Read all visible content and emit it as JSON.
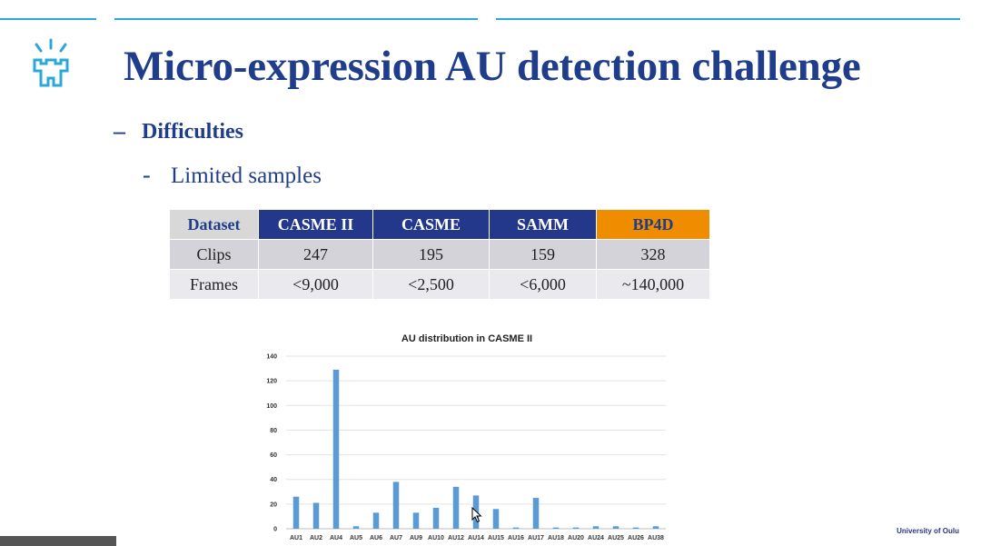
{
  "slide": {
    "title": "Micro-expression AU detection challenge",
    "bullet1": "Difficulties",
    "bullet2": "Limited samples",
    "footer": "University of Oulu",
    "logo": "university-tower-logo-icon",
    "accent_color": "#2aa9d8",
    "title_color": "#1f3d8a"
  },
  "table": {
    "headers": [
      "Dataset",
      "CASME II",
      "CASME",
      "SAMM",
      "BP4D"
    ],
    "rows": [
      [
        "Clips",
        "247",
        "195",
        "159",
        "328"
      ],
      [
        "Frames",
        "<9,000",
        "<2,500",
        "<6,000",
        "~140,000"
      ]
    ],
    "header_color": "#23388a",
    "highlight_color": "#f08c00"
  },
  "chart_data": {
    "type": "bar",
    "title": "AU distribution in CASME II",
    "xlabel": "",
    "ylabel": "",
    "categories": [
      "AU1",
      "AU2",
      "AU4",
      "AU5",
      "AU6",
      "AU7",
      "AU9",
      "AU10",
      "AU12",
      "AU14",
      "AU15",
      "AU16",
      "AU17",
      "AU18",
      "AU20",
      "AU24",
      "AU25",
      "AU26",
      "AU38"
    ],
    "values": [
      26,
      21,
      129,
      2,
      13,
      38,
      13,
      17,
      34,
      27,
      16,
      1,
      25,
      1,
      1,
      2,
      2,
      1,
      2
    ],
    "ylim": [
      0,
      140
    ],
    "yticks": [
      0,
      20,
      40,
      60,
      80,
      100,
      120,
      140
    ],
    "grid": true,
    "bar_color": "#5b9bd5"
  }
}
